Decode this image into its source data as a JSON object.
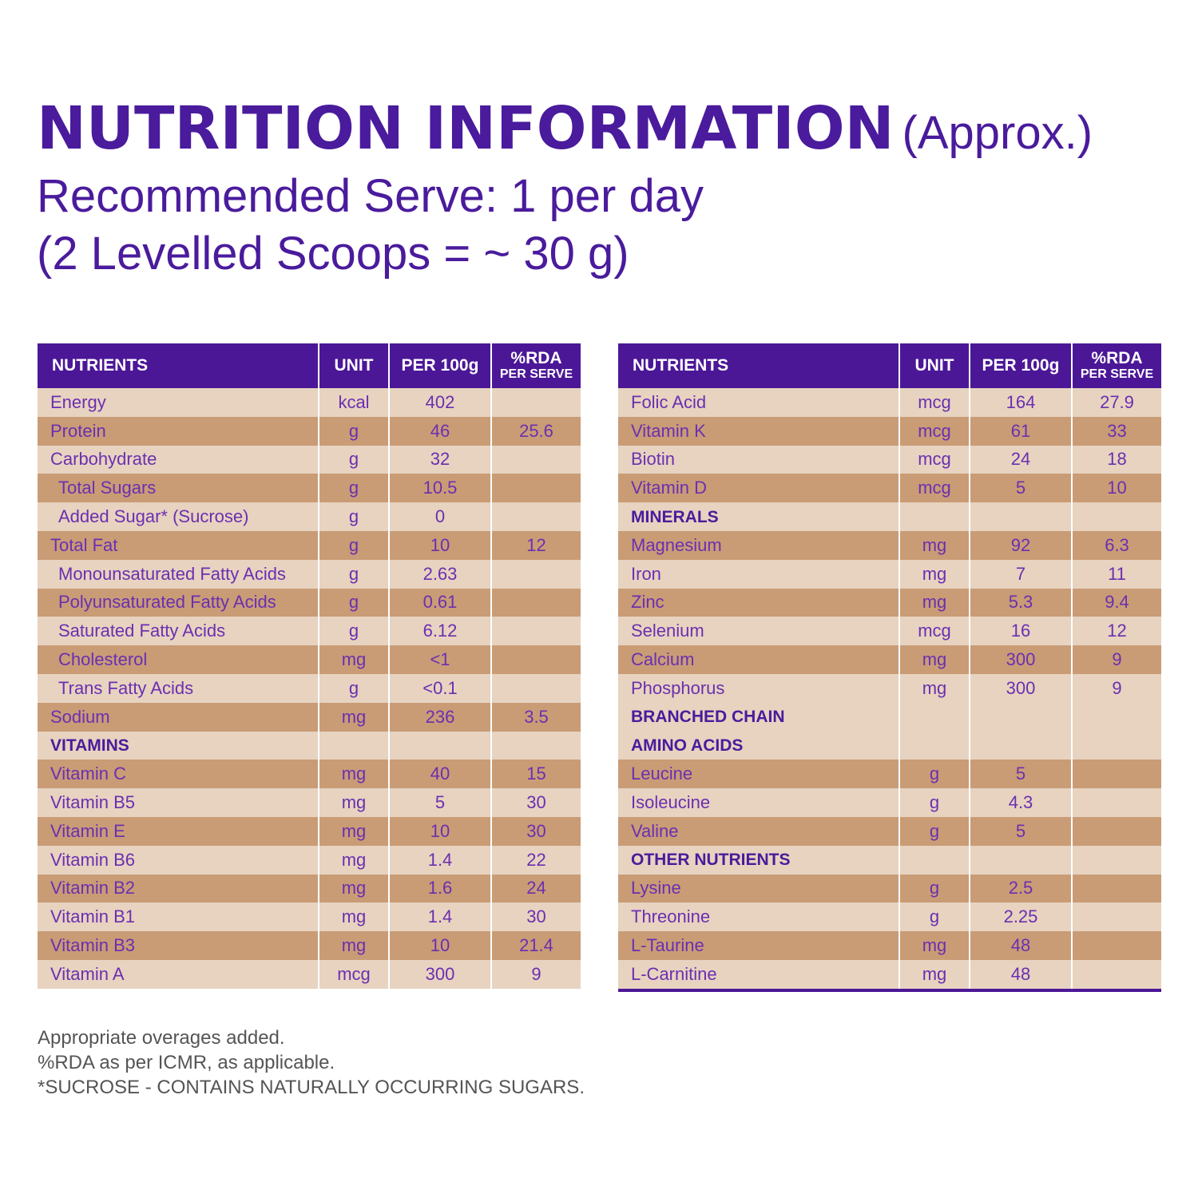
{
  "heading": {
    "title": "NUTRITION INFORMATION",
    "approx": "(Approx.)",
    "serve_line1": "Recommended Serve: 1 per day",
    "serve_line2": "(2 Levelled Scoops = ~ 30 g)"
  },
  "colors": {
    "header_purple": "#4b1797",
    "text_purple": "#6b2fb0",
    "row_light": "#e7d3c0",
    "row_dark": "#c99c76"
  },
  "table_header": {
    "nutrients": "NUTRIENTS",
    "unit": "UNIT",
    "per100": "PER 100g",
    "rda_top": "%RDA",
    "rda_bottom": "PER SERVE"
  },
  "left_rows": [
    {
      "name": "Energy",
      "unit": "kcal",
      "per100": "402",
      "rda": ""
    },
    {
      "name": "Protein",
      "unit": "g",
      "per100": "46",
      "rda": "25.6"
    },
    {
      "name": "Carbohydrate",
      "unit": "g",
      "per100": "32",
      "rda": ""
    },
    {
      "name": "Total Sugars",
      "unit": "g",
      "per100": "10.5",
      "rda": "",
      "indent": true
    },
    {
      "name": "Added Sugar* (Sucrose)",
      "unit": "g",
      "per100": "0",
      "rda": "",
      "indent": true
    },
    {
      "name": "Total Fat",
      "unit": "g",
      "per100": "10",
      "rda": "12"
    },
    {
      "name": "Monounsaturated Fatty Acids",
      "unit": "g",
      "per100": "2.63",
      "rda": "",
      "indent": true
    },
    {
      "name": "Polyunsaturated Fatty Acids",
      "unit": "g",
      "per100": "0.61",
      "rda": "",
      "indent": true
    },
    {
      "name": "Saturated Fatty Acids",
      "unit": "g",
      "per100": "6.12",
      "rda": "",
      "indent": true
    },
    {
      "name": "Cholesterol",
      "unit": "mg",
      "per100": "<1",
      "rda": "",
      "indent": true
    },
    {
      "name": "Trans Fatty Acids",
      "unit": "g",
      "per100": "<0.1",
      "rda": "",
      "indent": true
    },
    {
      "name": "Sodium",
      "unit": "mg",
      "per100": "236",
      "rda": "3.5"
    },
    {
      "name": "VITAMINS",
      "unit": "",
      "per100": "",
      "rda": "",
      "section": true
    },
    {
      "name": "Vitamin C",
      "unit": "mg",
      "per100": "40",
      "rda": "15"
    },
    {
      "name": "Vitamin B5",
      "unit": "mg",
      "per100": "5",
      "rda": "30"
    },
    {
      "name": "Vitamin E",
      "unit": "mg",
      "per100": "10",
      "rda": "30"
    },
    {
      "name": "Vitamin B6",
      "unit": "mg",
      "per100": "1.4",
      "rda": "22"
    },
    {
      "name": "Vitamin B2",
      "unit": "mg",
      "per100": "1.6",
      "rda": "24"
    },
    {
      "name": "Vitamin B1",
      "unit": "mg",
      "per100": "1.4",
      "rda": "30"
    },
    {
      "name": "Vitamin B3",
      "unit": "mg",
      "per100": "10",
      "rda": "21.4"
    },
    {
      "name": "Vitamin A",
      "unit": "mcg",
      "per100": "300",
      "rda": "9"
    }
  ],
  "right_rows": [
    {
      "name": "Folic Acid",
      "unit": "mcg",
      "per100": "164",
      "rda": "27.9"
    },
    {
      "name": "Vitamin K",
      "unit": "mcg",
      "per100": "61",
      "rda": "33"
    },
    {
      "name": "Biotin",
      "unit": "mcg",
      "per100": "24",
      "rda": "18"
    },
    {
      "name": "Vitamin D",
      "unit": "mcg",
      "per100": "5",
      "rda": "10"
    },
    {
      "name": "MINERALS",
      "unit": "",
      "per100": "",
      "rda": "",
      "section": true
    },
    {
      "name": "Magnesium",
      "unit": "mg",
      "per100": "92",
      "rda": "6.3"
    },
    {
      "name": "Iron",
      "unit": "mg",
      "per100": "7",
      "rda": "11"
    },
    {
      "name": "Zinc",
      "unit": "mg",
      "per100": "5.3",
      "rda": "9.4"
    },
    {
      "name": "Selenium",
      "unit": "mcg",
      "per100": "16",
      "rda": "12"
    },
    {
      "name": "Calcium",
      "unit": "mg",
      "per100": "300",
      "rda": "9"
    },
    {
      "name": "Phosphorus",
      "unit": "mg",
      "per100": "300",
      "rda": "9"
    },
    {
      "name": "BRANCHED CHAIN",
      "unit": "",
      "per100": "",
      "rda": "",
      "section": true,
      "shade": "lt"
    },
    {
      "name": "AMINO ACIDS",
      "unit": "",
      "per100": "",
      "rda": "",
      "section": true,
      "shade": "lt"
    },
    {
      "name": "Leucine",
      "unit": "g",
      "per100": "5",
      "rda": ""
    },
    {
      "name": "Isoleucine",
      "unit": "g",
      "per100": "4.3",
      "rda": ""
    },
    {
      "name": "Valine",
      "unit": "g",
      "per100": "5",
      "rda": ""
    },
    {
      "name": "OTHER NUTRIENTS",
      "unit": "",
      "per100": "",
      "rda": "",
      "section": true
    },
    {
      "name": "Lysine",
      "unit": "g",
      "per100": "2.5",
      "rda": ""
    },
    {
      "name": "Threonine",
      "unit": "g",
      "per100": "2.25",
      "rda": ""
    },
    {
      "name": "L-Taurine",
      "unit": "mg",
      "per100": "48",
      "rda": ""
    },
    {
      "name": "L-Carnitine",
      "unit": "mg",
      "per100": "48",
      "rda": ""
    }
  ],
  "notes": [
    "Appropriate overages added.",
    "%RDA as per ICMR, as applicable.",
    "*SUCROSE - CONTAINS NATURALLY OCCURRING SUGARS."
  ]
}
